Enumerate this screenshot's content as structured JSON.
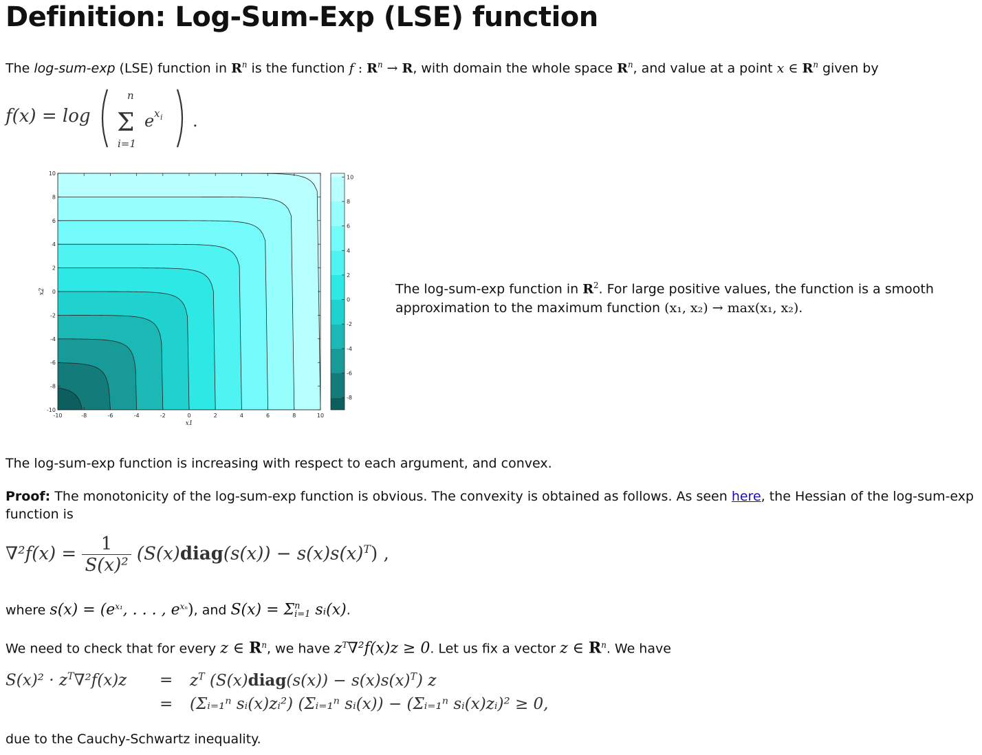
{
  "title": "Definition: Log-Sum-Exp (LSE) function",
  "intro": {
    "t1": "The ",
    "t2": "log-sum-exp",
    "t3": " (LSE) function in ",
    "t4": " is the function ",
    "t5": ", with domain the whole space ",
    "t6": ", and value at a point ",
    "t7": " given by",
    "Rn": "R",
    "n": "n"
  },
  "formula_f": {
    "lhs": "f(x) = log",
    "sum_top": "n",
    "sum_bottom": "i=1",
    "term": "e",
    "term_sup": "x",
    "term_sup_sub": "i",
    "dot": "."
  },
  "chart_data": {
    "type": "heatmap",
    "description_kind": "filled contour",
    "x_range": [
      -10,
      10
    ],
    "y_range": [
      -10,
      10
    ],
    "xlabel": "x1",
    "ylabel": "x2",
    "x_ticks": [
      -10,
      -8,
      -6,
      -4,
      -2,
      0,
      2,
      4,
      6,
      8,
      10
    ],
    "y_ticks": [
      -10,
      -8,
      -6,
      -4,
      -2,
      0,
      2,
      4,
      6,
      8,
      10
    ],
    "colorbar_ticks": [
      -8,
      -6,
      -4,
      -2,
      0,
      2,
      4,
      6,
      8,
      10
    ],
    "contour_levels": [
      -8,
      -6,
      -4,
      -2,
      0,
      2,
      4,
      6,
      8,
      10
    ],
    "band_colors": [
      "#0d5e5e",
      "#137b7a",
      "#189a98",
      "#1cb8b5",
      "#20d2cf",
      "#2ee8e6",
      "#4ef3f2",
      "#72fbfa",
      "#96fefd",
      "#b8ffff",
      "#d8ffff"
    ]
  },
  "caption": {
    "t1": "The log-sum-exp function in ",
    "t2": ". For large positive values, the function is a smooth",
    "t3": "approximation to the maximum function ",
    "t4": "(x₁, x₂) → max(x₁, x₂)",
    "t5": "."
  },
  "statement": "The log-sum-exp function is increasing with respect to each argument, and convex.",
  "proof": {
    "label": "Proof:",
    "t1": " The monotonicity of the log-sum-exp function is obvious. The convexity is obtained as follows. As seen ",
    "link": "here",
    "t2": ", the Hessian of the log-sum-exp",
    "t3": "function is"
  },
  "hessian": {
    "lhs": "∇²f(x) = ",
    "num": "1",
    "den": "S(x)²",
    "rhs1": " (S(x)",
    "diag": "diag",
    "rhs2": "(s(x)) − s(x)s(x)",
    "T": "T",
    "rhs3": ") ,"
  },
  "where": {
    "t1": "where ",
    "m1": "s(x) = (e",
    "m1_sup": "x₁",
    "m1_mid": ", . . . , e",
    "m1_sup2": "xₙ",
    "m1_end": ")",
    "t2": ", and ",
    "m2": "S(x) = Σ",
    "m2_sup": "n",
    "m2_sub": "i=1",
    "m2_end": " sᵢ(x)",
    "t3": "."
  },
  "check": {
    "t1": "We need to check that for every ",
    "m1": "z ∈ ",
    "t2": ", we have ",
    "m2": "z",
    "m2_sup": "T",
    "m2_rest": "∇²f(x)z ≥ 0",
    "t3": ". Let us fix a vector ",
    "m3": "z ∈ ",
    "t4": ". We have"
  },
  "eq_lines": {
    "lhs": "S(x)² · z",
    "lhs_sup": "T",
    "lhs_rest": "∇²f(x)z",
    "eq": "=",
    "r1a": "z",
    "r1_sup": "T",
    "r1b": " (S(x)",
    "r1_diag": "diag",
    "r1c": "(s(x)) − s(x)s(x)",
    "r1_T": "T",
    "r1d": ") z",
    "r2": "(Σᵢ₌₁ⁿ sᵢ(x)zᵢ²) (Σᵢ₌₁ⁿ sᵢ(x)) − (Σᵢ₌₁ⁿ sᵢ(x)zᵢ)² ≥ 0,"
  },
  "conclusion": "due to the Cauchy-Schwartz inequality."
}
